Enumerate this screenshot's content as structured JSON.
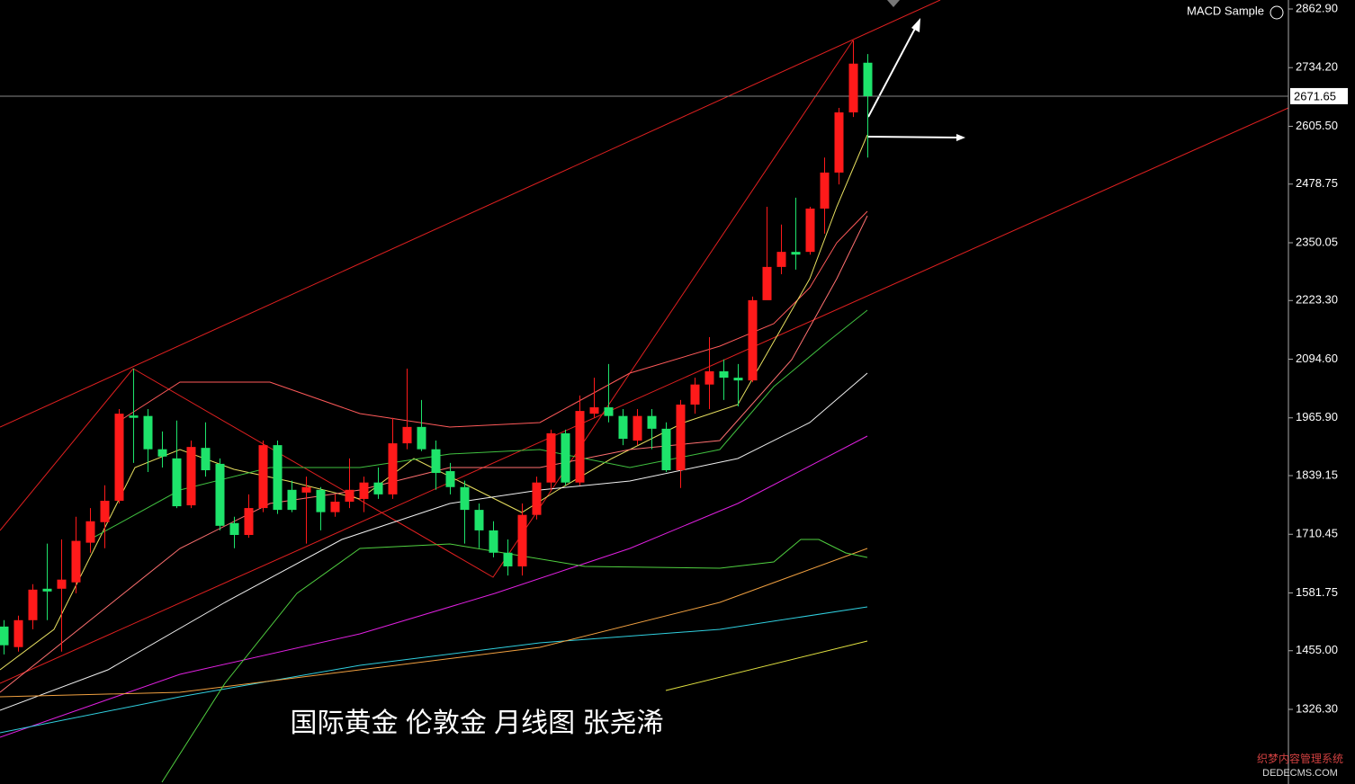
{
  "chart_data": {
    "type": "candlestick",
    "indicator": "MACD Sample",
    "annotation": "国际黄金 伦敦金 月线图 张尧浠",
    "watermark": [
      "织梦内容管理系统",
      "DEDECMS.COM"
    ],
    "up_color": "#ff1a1a",
    "down_color": "#1ee36b",
    "current_price": 2671.65,
    "ylim": [
      1162.6,
      2882.6
    ],
    "yticks": [
      {
        "value": 2862.9,
        "label": "2862.90"
      },
      {
        "value": 2734.2,
        "label": "2734.20"
      },
      {
        "value": 2605.5,
        "label": "2605.50"
      },
      2478.75,
      2350.05,
      {
        "value": 2223.3,
        "label": "2223.30"
      },
      {
        "value": 2094.6,
        "label": "2094.60"
      },
      {
        "value": 1965.9,
        "label": "1965.90"
      },
      1839.15,
      1710.45,
      1581.75,
      {
        "value": 1455,
        "label": "1455.00"
      },
      {
        "value": 1326.3,
        "label": "1326.30"
      }
    ],
    "open": [
      1508,
      1463,
      1522,
      1591,
      1591,
      1605,
      1692,
      1737,
      1784,
      1971,
      1970,
      1897,
      1877,
      1774,
      1900,
      1865,
      1735,
      1709,
      1768,
      1906,
      1808,
      1802,
      1808,
      1759,
      1782,
      1788,
      1824,
      1798,
      1910,
      1946,
      1897,
      1849,
      1814,
      1764,
      1719,
      1670,
      1640,
      1753,
      1824,
      1932,
      1824,
      1975,
      1989,
      1970,
      1916,
      1970,
      1942,
      1851,
      1995,
      2039,
      2068,
      2054,
      2048,
      2224,
      2297,
      2330,
      2330,
      2425,
      2504,
      2636,
      2745
    ],
    "high": [
      1522,
      1532,
      1601,
      1690,
      1699,
      1749,
      1768,
      1818,
      1985,
      2074,
      1985,
      1936,
      1960,
      1916,
      1956,
      1877,
      1749,
      1798,
      1916,
      1916,
      1828,
      1837,
      1814,
      1798,
      1877,
      1837,
      1857,
      1966,
      2074,
      2005,
      1916,
      1867,
      1828,
      1778,
      1739,
      1699,
      1778,
      1837,
      1940,
      1940,
      2015,
      2054,
      2084,
      1985,
      1985,
      1985,
      1956,
      2005,
      2054,
      2143,
      2094,
      2084,
      2232,
      2429,
      2390,
      2449,
      2429,
      2537,
      2646,
      2794,
      2764
    ],
    "low": [
      1447,
      1453,
      1502,
      1522,
      1453,
      1581,
      1670,
      1680,
      1778,
      1867,
      1847,
      1857,
      1768,
      1768,
      1837,
      1719,
      1680,
      1703,
      1759,
      1755,
      1759,
      1690,
      1719,
      1749,
      1768,
      1759,
      1788,
      1788,
      1897,
      1893,
      1808,
      1798,
      1690,
      1680,
      1660,
      1620,
      1620,
      1743,
      1808,
      1818,
      1818,
      1966,
      1956,
      1906,
      1906,
      1897,
      1847,
      1812,
      1975,
      1985,
      2005,
      1991,
      2044,
      2232,
      2281,
      2291,
      2324,
      2370,
      2478,
      2626,
      2537
    ],
    "close": [
      1467,
      1522,
      1589,
      1585,
      1611,
      1696,
      1739,
      1784,
      1975,
      1966,
      1897,
      1881,
      1772,
      1902,
      1851,
      1729,
      1709,
      1768,
      1906,
      1764,
      1764,
      1814,
      1759,
      1782,
      1808,
      1824,
      1798,
      1910,
      1946,
      1897,
      1845,
      1814,
      1764,
      1719,
      1670,
      1640,
      1753,
      1824,
      1932,
      1824,
      1981,
      1989,
      1970,
      1920,
      1970,
      1942,
      1851,
      1995,
      2039,
      2068,
      2054,
      2048,
      2224,
      2297,
      2330,
      2324,
      2425,
      2504,
      2636,
      2743,
      2671.65
    ]
  }
}
